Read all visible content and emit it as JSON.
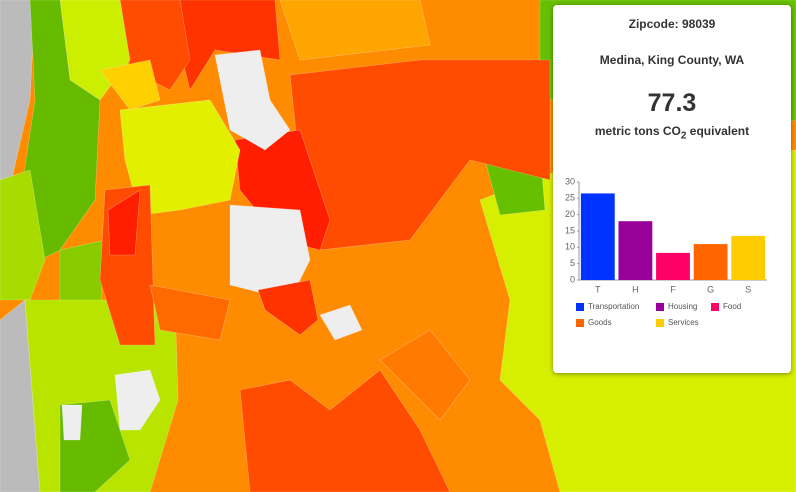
{
  "zipcode": "Zipcode: 98039",
  "place": "Medina, King County, WA",
  "total": 77.3,
  "unit": {
    "before": "metric tons CO",
    "sub": "2",
    "after": " equivalent"
  },
  "chart_data": {
    "type": "bar",
    "categories": [
      "T",
      "H",
      "F",
      "G",
      "S"
    ],
    "values": [
      26.5,
      18,
      8.3,
      11,
      13.5
    ],
    "colors": [
      "#0033ff",
      "#990099",
      "#ff0066",
      "#ff6600",
      "#ffcc00"
    ],
    "legend": [
      "Transportation",
      "Housing",
      "Food",
      "Goods",
      "Services"
    ],
    "ylim": [
      0,
      30
    ],
    "yticks": [
      0,
      5,
      10,
      15,
      20,
      25,
      30
    ]
  }
}
